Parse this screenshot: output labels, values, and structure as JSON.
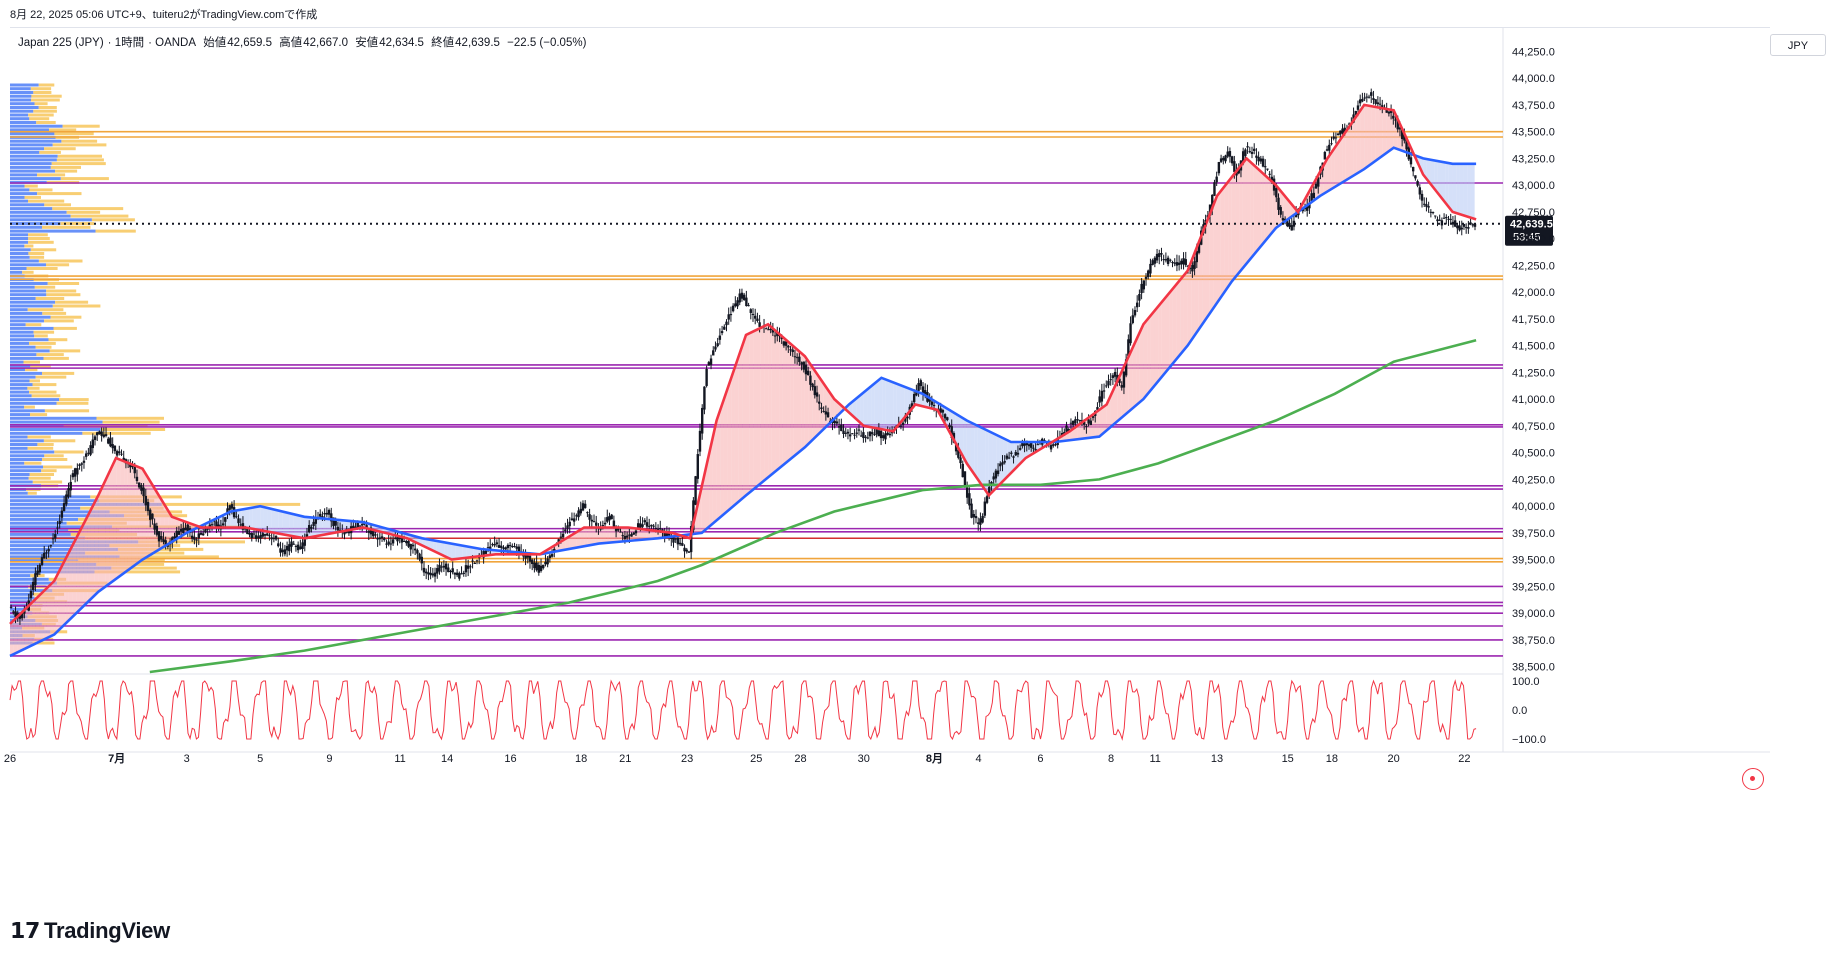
{
  "header": {
    "text": "8月 22, 2025 05:06 UTC+9、tuiteru2がTradingView.comで作成"
  },
  "legend": {
    "symbol": "Japan 225 (JPY)",
    "interval": "1時間",
    "broker": "OANDA",
    "open_label": "始値",
    "open": "42,659.5",
    "high_label": "高値",
    "high": "42,667.0",
    "low_label": "安値",
    "low": "42,634.5",
    "close_label": "終値",
    "close": "42,639.5",
    "change": "−22.5 (−0.05%)"
  },
  "currency": "JPY",
  "brand": "TradingView",
  "colors": {
    "candle": "#131722",
    "ema_fast": "#f23645",
    "ema_slow": "#2962ff",
    "sma_long": "#4caf50",
    "fill_up": "#f8b4b4",
    "fill_down": "#b9cbf5",
    "vp_up": "#4d7ef7",
    "vp_down": "#f7c65a",
    "hline_orange": "#f0a53c",
    "hline_purple": "#9c27b0",
    "hline_red": "#d32f2f",
    "oscillator": "#f23645"
  },
  "chart_data": {
    "type": "candlestick",
    "symbol": "Japan 225 (JPY)",
    "interval": "1時間",
    "y_range": [
      38450,
      44450
    ],
    "y_ticks": [
      44250,
      44000,
      43750,
      43500,
      43250,
      43000,
      42750,
      42500,
      42250,
      42000,
      41750,
      41500,
      41250,
      41000,
      40750,
      40500,
      40250,
      40000,
      39750,
      39500,
      39250,
      39000,
      38750,
      38500
    ],
    "y_tick_labels": [
      "44,250.0",
      "44,000.0",
      "43,750.0",
      "43,500.0",
      "43,250.0",
      "43,000.0",
      "42,750.0",
      "42,500.0",
      "42,250.0",
      "42,000.0",
      "41,750.0",
      "41,500.0",
      "41,250.0",
      "41,000.0",
      "40,750.0",
      "40,500.0",
      "40,250.0",
      "40,000.0",
      "39,750.0",
      "39,500.0",
      "39,250.0",
      "39,000.0",
      "38,750.0",
      "38,500.0"
    ],
    "x_ticks": [
      {
        "label": "26",
        "t": 0.0
      },
      {
        "label": "7月",
        "t": 0.0725,
        "bold": true
      },
      {
        "label": "3",
        "t": 0.12
      },
      {
        "label": "5",
        "t": 0.17
      },
      {
        "label": "9",
        "t": 0.217
      },
      {
        "label": "11",
        "t": 0.265
      },
      {
        "label": "14",
        "t": 0.297
      },
      {
        "label": "16",
        "t": 0.34
      },
      {
        "label": "18",
        "t": 0.388
      },
      {
        "label": "21",
        "t": 0.418
      },
      {
        "label": "23",
        "t": 0.46
      },
      {
        "label": "25",
        "t": 0.507
      },
      {
        "label": "28",
        "t": 0.537
      },
      {
        "label": "30",
        "t": 0.58
      },
      {
        "label": "8月",
        "t": 0.628,
        "bold": true
      },
      {
        "label": "4",
        "t": 0.658
      },
      {
        "label": "6",
        "t": 0.7
      },
      {
        "label": "8",
        "t": 0.748
      },
      {
        "label": "11",
        "t": 0.778
      },
      {
        "label": "13",
        "t": 0.82
      },
      {
        "label": "15",
        "t": 0.868
      },
      {
        "label": "18",
        "t": 0.898
      },
      {
        "label": "20",
        "t": 0.94
      },
      {
        "label": "22",
        "t": 0.988
      }
    ],
    "price_path": [
      [
        0.0,
        39050
      ],
      [
        0.006,
        38950
      ],
      [
        0.012,
        39050
      ],
      [
        0.018,
        39350
      ],
      [
        0.024,
        39550
      ],
      [
        0.03,
        39700
      ],
      [
        0.036,
        39950
      ],
      [
        0.042,
        40250
      ],
      [
        0.048,
        40400
      ],
      [
        0.054,
        40500
      ],
      [
        0.06,
        40700
      ],
      [
        0.066,
        40650
      ],
      [
        0.072,
        40500
      ],
      [
        0.078,
        40450
      ],
      [
        0.084,
        40350
      ],
      [
        0.09,
        40150
      ],
      [
        0.096,
        39900
      ],
      [
        0.102,
        39700
      ],
      [
        0.108,
        39650
      ],
      [
        0.114,
        39750
      ],
      [
        0.12,
        39800
      ],
      [
        0.126,
        39700
      ],
      [
        0.132,
        39750
      ],
      [
        0.138,
        39850
      ],
      [
        0.144,
        39800
      ],
      [
        0.15,
        40000
      ],
      [
        0.156,
        39850
      ],
      [
        0.162,
        39750
      ],
      [
        0.168,
        39700
      ],
      [
        0.174,
        39750
      ],
      [
        0.18,
        39700
      ],
      [
        0.186,
        39550
      ],
      [
        0.192,
        39650
      ],
      [
        0.198,
        39600
      ],
      [
        0.204,
        39800
      ],
      [
        0.21,
        39900
      ],
      [
        0.216,
        39950
      ],
      [
        0.222,
        39800
      ],
      [
        0.228,
        39750
      ],
      [
        0.234,
        39800
      ],
      [
        0.24,
        39850
      ],
      [
        0.246,
        39750
      ],
      [
        0.252,
        39700
      ],
      [
        0.258,
        39650
      ],
      [
        0.264,
        39700
      ],
      [
        0.27,
        39650
      ],
      [
        0.276,
        39600
      ],
      [
        0.282,
        39400
      ],
      [
        0.288,
        39350
      ],
      [
        0.294,
        39450
      ],
      [
        0.3,
        39400
      ],
      [
        0.306,
        39350
      ],
      [
        0.312,
        39450
      ],
      [
        0.318,
        39500
      ],
      [
        0.324,
        39600
      ],
      [
        0.33,
        39650
      ],
      [
        0.336,
        39600
      ],
      [
        0.342,
        39650
      ],
      [
        0.348,
        39550
      ],
      [
        0.354,
        39500
      ],
      [
        0.36,
        39400
      ],
      [
        0.366,
        39500
      ],
      [
        0.372,
        39650
      ],
      [
        0.378,
        39800
      ],
      [
        0.384,
        39900
      ],
      [
        0.39,
        40000
      ],
      [
        0.396,
        39850
      ],
      [
        0.402,
        39800
      ],
      [
        0.408,
        39900
      ],
      [
        0.414,
        39750
      ],
      [
        0.42,
        39700
      ],
      [
        0.426,
        39800
      ],
      [
        0.432,
        39850
      ],
      [
        0.438,
        39800
      ],
      [
        0.444,
        39750
      ],
      [
        0.45,
        39700
      ],
      [
        0.456,
        39650
      ],
      [
        0.462,
        39550
      ],
      [
        0.468,
        40500
      ],
      [
        0.474,
        41300
      ],
      [
        0.48,
        41500
      ],
      [
        0.486,
        41700
      ],
      [
        0.492,
        41850
      ],
      [
        0.498,
        42000
      ],
      [
        0.504,
        41800
      ],
      [
        0.51,
        41700
      ],
      [
        0.516,
        41650
      ],
      [
        0.522,
        41600
      ],
      [
        0.528,
        41500
      ],
      [
        0.534,
        41400
      ],
      [
        0.54,
        41300
      ],
      [
        0.546,
        41100
      ],
      [
        0.552,
        40900
      ],
      [
        0.558,
        40800
      ],
      [
        0.564,
        40750
      ],
      [
        0.57,
        40650
      ],
      [
        0.576,
        40700
      ],
      [
        0.582,
        40650
      ],
      [
        0.588,
        40700
      ],
      [
        0.594,
        40650
      ],
      [
        0.6,
        40700
      ],
      [
        0.606,
        40750
      ],
      [
        0.612,
        40900
      ],
      [
        0.618,
        41150
      ],
      [
        0.624,
        41000
      ],
      [
        0.63,
        40900
      ],
      [
        0.636,
        40850
      ],
      [
        0.642,
        40600
      ],
      [
        0.648,
        40300
      ],
      [
        0.654,
        39900
      ],
      [
        0.66,
        39850
      ],
      [
        0.666,
        40200
      ],
      [
        0.672,
        40350
      ],
      [
        0.678,
        40450
      ],
      [
        0.684,
        40500
      ],
      [
        0.69,
        40600
      ],
      [
        0.696,
        40550
      ],
      [
        0.702,
        40600
      ],
      [
        0.708,
        40550
      ],
      [
        0.714,
        40650
      ],
      [
        0.72,
        40750
      ],
      [
        0.726,
        40800
      ],
      [
        0.732,
        40750
      ],
      [
        0.738,
        40900
      ],
      [
        0.744,
        41100
      ],
      [
        0.75,
        41250
      ],
      [
        0.756,
        41100
      ],
      [
        0.762,
        41700
      ],
      [
        0.768,
        42000
      ],
      [
        0.774,
        42200
      ],
      [
        0.78,
        42350
      ],
      [
        0.786,
        42300
      ],
      [
        0.792,
        42250
      ],
      [
        0.798,
        42300
      ],
      [
        0.804,
        42200
      ],
      [
        0.81,
        42550
      ],
      [
        0.816,
        42800
      ],
      [
        0.822,
        43200
      ],
      [
        0.828,
        43300
      ],
      [
        0.834,
        43100
      ],
      [
        0.84,
        43350
      ],
      [
        0.846,
        43300
      ],
      [
        0.852,
        43200
      ],
      [
        0.858,
        43050
      ],
      [
        0.864,
        42700
      ],
      [
        0.87,
        42600
      ],
      [
        0.876,
        42750
      ],
      [
        0.882,
        42800
      ],
      [
        0.888,
        43000
      ],
      [
        0.894,
        43300
      ],
      [
        0.9,
        43450
      ],
      [
        0.906,
        43500
      ],
      [
        0.912,
        43600
      ],
      [
        0.918,
        43800
      ],
      [
        0.924,
        43850
      ],
      [
        0.93,
        43750
      ],
      [
        0.936,
        43700
      ],
      [
        0.942,
        43600
      ],
      [
        0.948,
        43400
      ],
      [
        0.954,
        43100
      ],
      [
        0.96,
        42850
      ],
      [
        0.966,
        42750
      ],
      [
        0.972,
        42650
      ],
      [
        0.978,
        42700
      ],
      [
        0.984,
        42600
      ],
      [
        0.99,
        42620
      ],
      [
        0.996,
        42640
      ]
    ],
    "ema_fast": [
      [
        0.0,
        38900
      ],
      [
        0.03,
        39300
      ],
      [
        0.06,
        40100
      ],
      [
        0.072,
        40450
      ],
      [
        0.09,
        40350
      ],
      [
        0.11,
        39900
      ],
      [
        0.13,
        39800
      ],
      [
        0.16,
        39800
      ],
      [
        0.2,
        39700
      ],
      [
        0.24,
        39800
      ],
      [
        0.27,
        39700
      ],
      [
        0.3,
        39500
      ],
      [
        0.33,
        39550
      ],
      [
        0.36,
        39550
      ],
      [
        0.39,
        39800
      ],
      [
        0.42,
        39800
      ],
      [
        0.45,
        39750
      ],
      [
        0.462,
        39700
      ],
      [
        0.48,
        40800
      ],
      [
        0.5,
        41600
      ],
      [
        0.515,
        41700
      ],
      [
        0.54,
        41400
      ],
      [
        0.56,
        41000
      ],
      [
        0.58,
        40750
      ],
      [
        0.6,
        40700
      ],
      [
        0.615,
        40950
      ],
      [
        0.63,
        40900
      ],
      [
        0.65,
        40400
      ],
      [
        0.665,
        40100
      ],
      [
        0.69,
        40450
      ],
      [
        0.72,
        40700
      ],
      [
        0.745,
        40950
      ],
      [
        0.77,
        41700
      ],
      [
        0.8,
        42200
      ],
      [
        0.82,
        42900
      ],
      [
        0.84,
        43250
      ],
      [
        0.86,
        43000
      ],
      [
        0.875,
        42750
      ],
      [
        0.895,
        43250
      ],
      [
        0.92,
        43750
      ],
      [
        0.94,
        43700
      ],
      [
        0.96,
        43100
      ],
      [
        0.98,
        42750
      ],
      [
        0.996,
        42680
      ]
    ],
    "ema_slow": [
      [
        0.0,
        38600
      ],
      [
        0.03,
        38800
      ],
      [
        0.06,
        39200
      ],
      [
        0.09,
        39500
      ],
      [
        0.12,
        39750
      ],
      [
        0.15,
        39950
      ],
      [
        0.17,
        40000
      ],
      [
        0.2,
        39900
      ],
      [
        0.24,
        39850
      ],
      [
        0.28,
        39700
      ],
      [
        0.32,
        39600
      ],
      [
        0.36,
        39550
      ],
      [
        0.4,
        39650
      ],
      [
        0.44,
        39700
      ],
      [
        0.47,
        39750
      ],
      [
        0.5,
        40100
      ],
      [
        0.54,
        40550
      ],
      [
        0.57,
        40950
      ],
      [
        0.592,
        41200
      ],
      [
        0.62,
        41050
      ],
      [
        0.65,
        40800
      ],
      [
        0.68,
        40600
      ],
      [
        0.71,
        40600
      ],
      [
        0.74,
        40650
      ],
      [
        0.77,
        41000
      ],
      [
        0.8,
        41500
      ],
      [
        0.83,
        42100
      ],
      [
        0.86,
        42600
      ],
      [
        0.89,
        42900
      ],
      [
        0.92,
        43150
      ],
      [
        0.94,
        43350
      ],
      [
        0.96,
        43250
      ],
      [
        0.98,
        43200
      ],
      [
        0.996,
        43200
      ]
    ],
    "sma_long": [
      [
        0.095,
        38450
      ],
      [
        0.15,
        38550
      ],
      [
        0.2,
        38650
      ],
      [
        0.26,
        38800
      ],
      [
        0.32,
        38950
      ],
      [
        0.38,
        39100
      ],
      [
        0.44,
        39300
      ],
      [
        0.47,
        39450
      ],
      [
        0.52,
        39750
      ],
      [
        0.56,
        39950
      ],
      [
        0.62,
        40150
      ],
      [
        0.66,
        40200
      ],
      [
        0.7,
        40200
      ],
      [
        0.74,
        40250
      ],
      [
        0.78,
        40400
      ],
      [
        0.82,
        40600
      ],
      [
        0.86,
        40800
      ],
      [
        0.9,
        41050
      ],
      [
        0.94,
        41350
      ],
      [
        0.996,
        41550
      ]
    ],
    "hlines": [
      {
        "price": 43500,
        "color": "orange"
      },
      {
        "price": 43450,
        "color": "orange"
      },
      {
        "price": 43020,
        "color": "purple"
      },
      {
        "price": 42150,
        "color": "orange"
      },
      {
        "price": 42120,
        "color": "orange"
      },
      {
        "price": 41320,
        "color": "purple"
      },
      {
        "price": 41290,
        "color": "purple"
      },
      {
        "price": 40760,
        "color": "purple"
      },
      {
        "price": 40740,
        "color": "purple"
      },
      {
        "price": 40190,
        "color": "purple"
      },
      {
        "price": 40160,
        "color": "purple"
      },
      {
        "price": 39790,
        "color": "purple"
      },
      {
        "price": 39760,
        "color": "purple"
      },
      {
        "price": 39700,
        "color": "red"
      },
      {
        "price": 39510,
        "color": "orange"
      },
      {
        "price": 39480,
        "color": "orange"
      },
      {
        "price": 39250,
        "color": "purple"
      },
      {
        "price": 39100,
        "color": "purple"
      },
      {
        "price": 39070,
        "color": "purple"
      },
      {
        "price": 39000,
        "color": "purple"
      },
      {
        "price": 38880,
        "color": "purple"
      },
      {
        "price": 38750,
        "color": "purple"
      },
      {
        "price": 38600,
        "color": "purple"
      }
    ],
    "last_price": {
      "value": 42639.5,
      "label": "42,639.5",
      "countdown": "53:45"
    },
    "volume_profile_y_range": [
      38700,
      43950
    ],
    "oscillator": {
      "y_ticks": [
        100,
        0,
        -100
      ],
      "y_tick_labels": [
        "100.0",
        "0.0",
        "−100.0"
      ]
    }
  }
}
